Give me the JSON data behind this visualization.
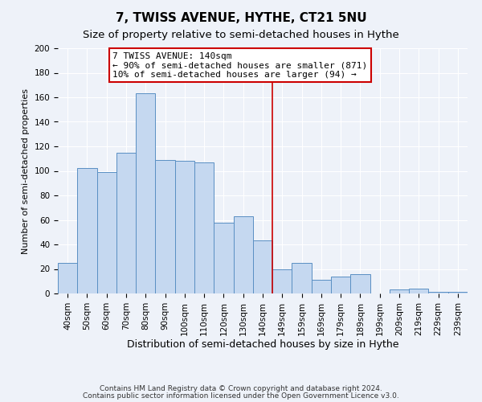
{
  "title": "7, TWISS AVENUE, HYTHE, CT21 5NU",
  "subtitle": "Size of property relative to semi-detached houses in Hythe",
  "xlabel": "Distribution of semi-detached houses by size in Hythe",
  "ylabel": "Number of semi-detached properties",
  "categories": [
    "40sqm",
    "50sqm",
    "60sqm",
    "70sqm",
    "80sqm",
    "90sqm",
    "100sqm",
    "110sqm",
    "120sqm",
    "130sqm",
    "140sqm",
    "149sqm",
    "159sqm",
    "169sqm",
    "179sqm",
    "189sqm",
    "199sqm",
    "209sqm",
    "219sqm",
    "229sqm",
    "239sqm"
  ],
  "values": [
    25,
    102,
    99,
    115,
    163,
    109,
    108,
    107,
    58,
    63,
    43,
    20,
    25,
    11,
    14,
    16,
    0,
    3,
    4,
    1,
    1
  ],
  "bar_color": "#c5d8f0",
  "bar_edge_color": "#5a8fc3",
  "vline_color": "#cc0000",
  "annotation_text": "7 TWISS AVENUE: 140sqm\n← 90% of semi-detached houses are smaller (871)\n10% of semi-detached houses are larger (94) →",
  "annotation_box_color": "#ffffff",
  "annotation_box_edge_color": "#cc0000",
  "ylim": [
    0,
    200
  ],
  "yticks": [
    0,
    20,
    40,
    60,
    80,
    100,
    120,
    140,
    160,
    180,
    200
  ],
  "footnote1": "Contains HM Land Registry data © Crown copyright and database right 2024.",
  "footnote2": "Contains public sector information licensed under the Open Government Licence v3.0.",
  "background_color": "#eef2f9",
  "grid_color": "#ffffff",
  "title_fontsize": 11,
  "subtitle_fontsize": 9.5,
  "xlabel_fontsize": 9,
  "ylabel_fontsize": 8,
  "tick_fontsize": 7.5,
  "annotation_fontsize": 8,
  "footnote_fontsize": 6.5
}
